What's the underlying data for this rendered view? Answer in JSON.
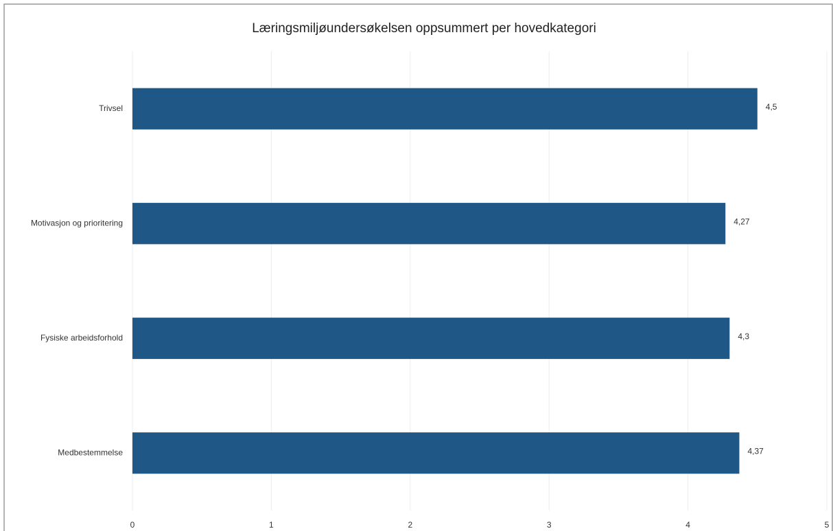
{
  "chart_data": {
    "type": "bar",
    "orientation": "horizontal",
    "title": "Læringsmiljøundersøkelsen oppsummert per hovedkategori",
    "categories": [
      "Trivsel",
      "Motivasjon og prioritering",
      "Fysiske arbeidsforhold",
      "Medbestemmelse"
    ],
    "values": [
      4.5,
      4.27,
      4.3,
      4.37
    ],
    "value_labels": [
      "4,5",
      "4,27",
      "4,3",
      "4,37"
    ],
    "color": "#1f5887",
    "xlim": [
      0,
      5
    ],
    "xticks": [
      0,
      1,
      2,
      3,
      4,
      5
    ],
    "grid": true
  }
}
